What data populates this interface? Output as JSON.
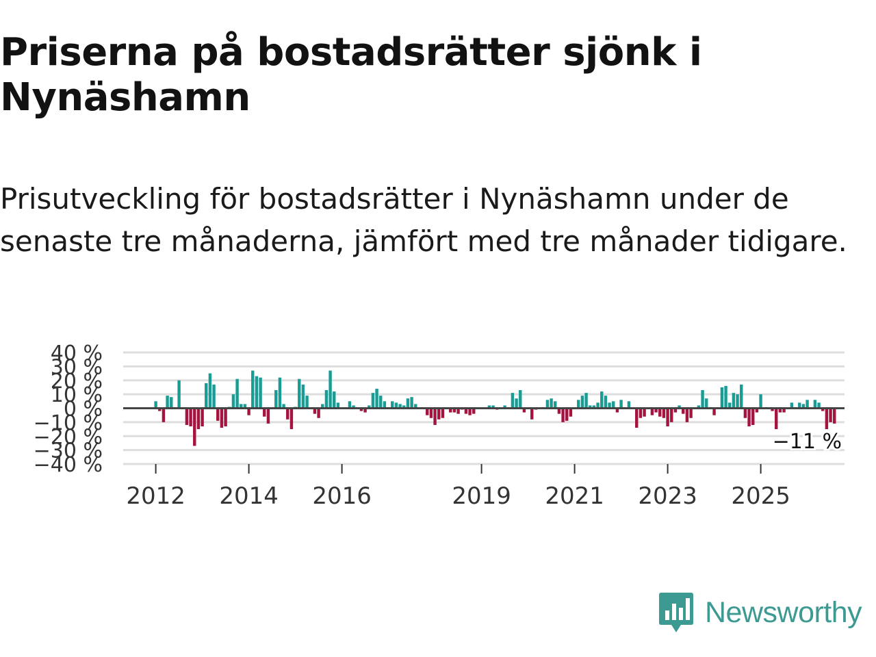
{
  "title": "Priserna på bostadsrätter sjönk i Nynäshamn",
  "subtitle": "Prisutveckling för bostadsrätter i Nynäshamn under de senaste tre månaderna, jämfört med tre månader tidigare.",
  "brand": {
    "name": "Newsworthy",
    "color": "#3d9a92",
    "icon": "newsworthy-logo-icon"
  },
  "colors": {
    "positive": "#1a9c94",
    "negative": "#a3143f",
    "zero_line": "#444444",
    "grid": "#dddddd"
  },
  "chart_data": {
    "type": "bar",
    "title": "",
    "xlabel": "",
    "ylabel": "",
    "ylim": [
      -40,
      40
    ],
    "yticks": [
      40,
      30,
      20,
      10,
      0,
      -10,
      -20,
      -30,
      -40
    ],
    "ytick_labels": [
      "40 %",
      "30 %",
      "20 %",
      "10 %",
      "0 %",
      "−10 %",
      "−20 %",
      "−30 %",
      "−40 %"
    ],
    "x_range": [
      2011.3,
      2026.8
    ],
    "xticks": [
      2012,
      2014,
      2016,
      2019,
      2021,
      2023,
      2025
    ],
    "xtick_labels": [
      "2012",
      "2014",
      "2016",
      "2019",
      "2021",
      "2023",
      "2025"
    ],
    "x_start": 2012.0,
    "x_step": 0.08333,
    "values": [
      5,
      -2,
      -10,
      9,
      8,
      0,
      20,
      0,
      -12,
      -13,
      -27,
      -15,
      -13,
      18,
      25,
      17,
      -9,
      -14,
      -13,
      1,
      10,
      21,
      3,
      3,
      -5,
      27,
      23,
      22,
      -6,
      -11,
      0,
      13,
      22,
      3,
      -8,
      -15,
      1,
      21,
      17,
      9,
      0,
      -4,
      -7,
      3,
      13,
      27,
      12,
      4,
      0,
      0,
      5,
      2,
      0,
      -2,
      -3,
      2,
      11,
      14,
      9,
      5,
      0,
      5,
      4,
      3,
      2,
      7,
      8,
      3,
      0,
      0,
      -5,
      -7,
      -12,
      -8,
      -7,
      0,
      -3,
      -3,
      -4,
      -1,
      -4,
      -5,
      -4,
      0,
      0,
      0,
      2,
      2,
      -1,
      0,
      2,
      0,
      11,
      7,
      13,
      -3,
      0,
      -8,
      -1,
      0,
      0,
      6,
      7,
      5,
      -4,
      -10,
      -9,
      -6,
      0,
      6,
      9,
      11,
      2,
      2,
      4,
      12,
      9,
      4,
      5,
      -3,
      6,
      0,
      5,
      0,
      -14,
      -7,
      -6,
      0,
      -5,
      -3,
      -6,
      -7,
      -13,
      -10,
      -3,
      2,
      -4,
      -10,
      -7,
      0,
      2,
      13,
      7,
      0,
      -5,
      0,
      15,
      16,
      4,
      11,
      10,
      17,
      -7,
      -13,
      -12,
      -3,
      10,
      0,
      0,
      -2,
      -15,
      -3,
      -3,
      0,
      4,
      0,
      4,
      3,
      6,
      0,
      6,
      4,
      -2,
      -15,
      -10,
      -11
    ],
    "last_label": "−11 %"
  }
}
